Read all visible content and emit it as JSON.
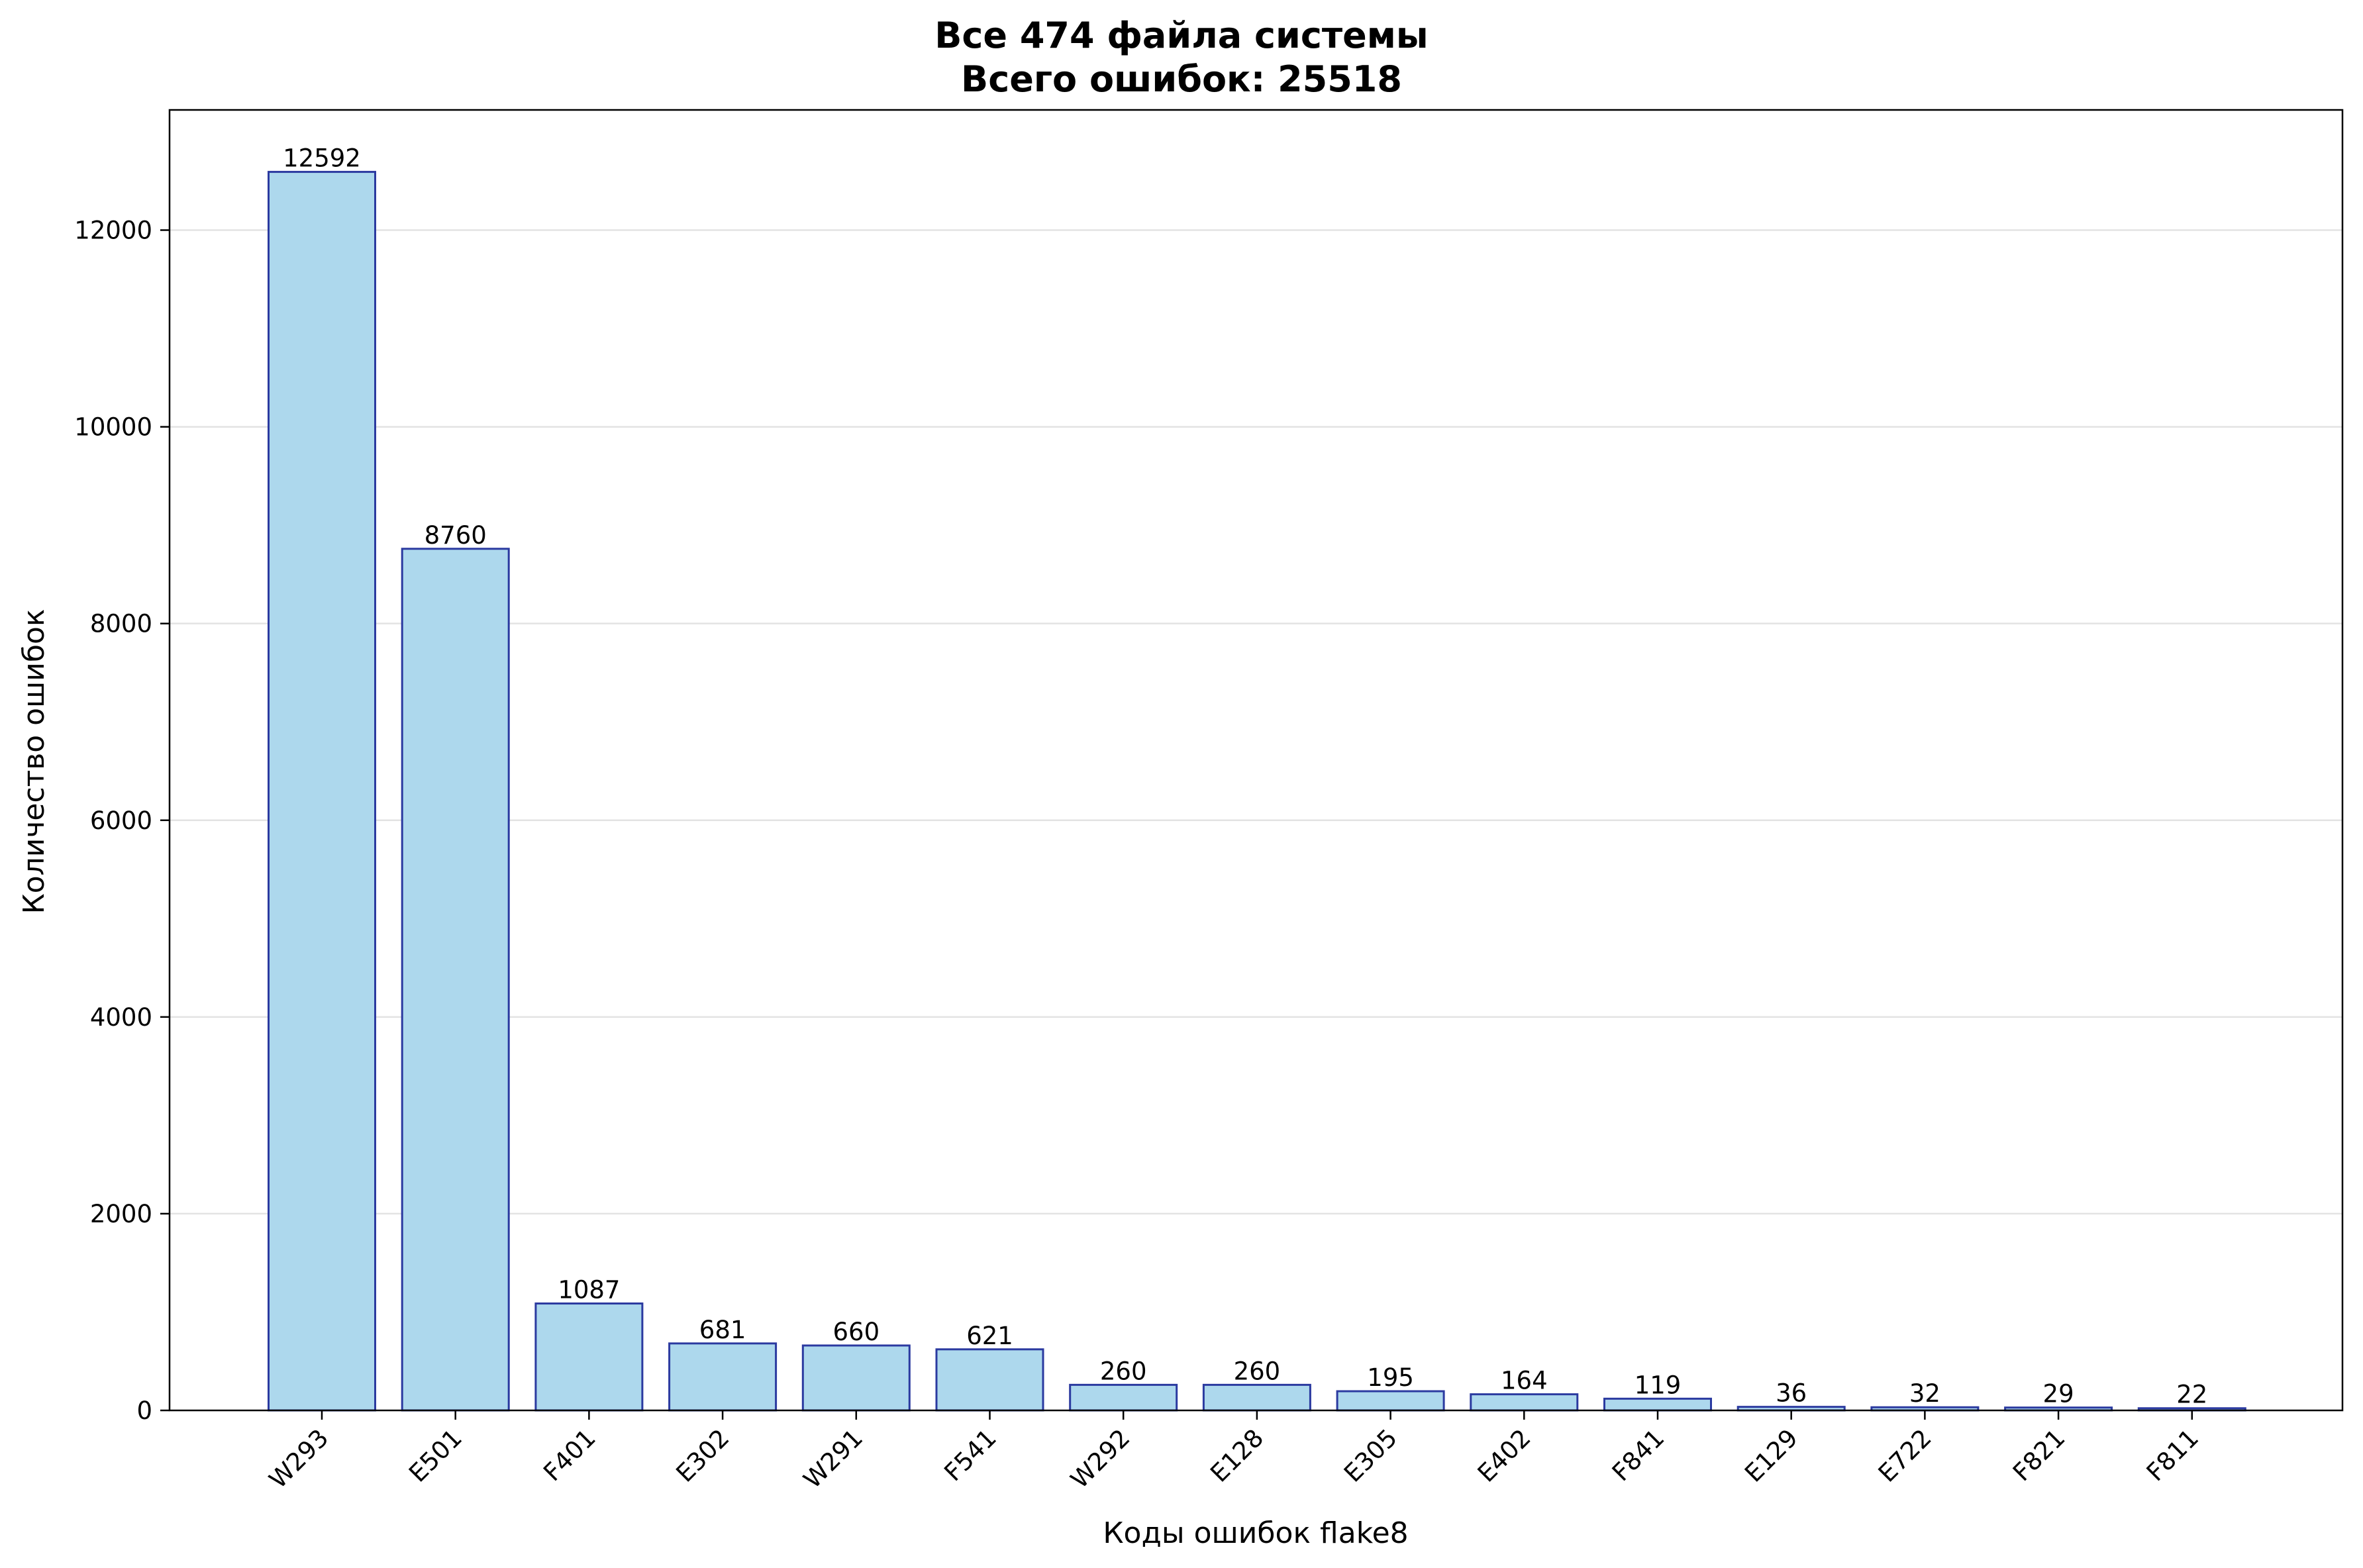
{
  "chart_data": {
    "type": "bar",
    "title_lines": [
      "Все 474 файла системы",
      "Всего ошибок: 25518"
    ],
    "xlabel": "Коды ошибок flake8",
    "ylabel": "Количество ошибок",
    "categories": [
      "W293",
      "E501",
      "F401",
      "E302",
      "W291",
      "F541",
      "W292",
      "E128",
      "E305",
      "E402",
      "F841",
      "E129",
      "E722",
      "F821",
      "F811"
    ],
    "values": [
      12592,
      8760,
      1087,
      681,
      660,
      621,
      260,
      260,
      195,
      164,
      119,
      36,
      32,
      29,
      22
    ],
    "value_labels": [
      "12592",
      "8760",
      "1087",
      "681",
      "660",
      "621",
      "260",
      "260",
      "195",
      "164",
      "119",
      "36",
      "32",
      "29",
      "22"
    ],
    "yticks": [
      0,
      2000,
      4000,
      6000,
      8000,
      10000,
      12000
    ],
    "ytick_labels": [
      "0",
      "2000",
      "4000",
      "6000",
      "8000",
      "10000",
      "12000"
    ],
    "ylim": [
      0,
      13222
    ],
    "grid": "horizontal",
    "legend": "none",
    "colors": {
      "bar_fill": "#add8ed",
      "bar_edge": "#2b3aa0",
      "grid": "#e3e3e3"
    }
  }
}
